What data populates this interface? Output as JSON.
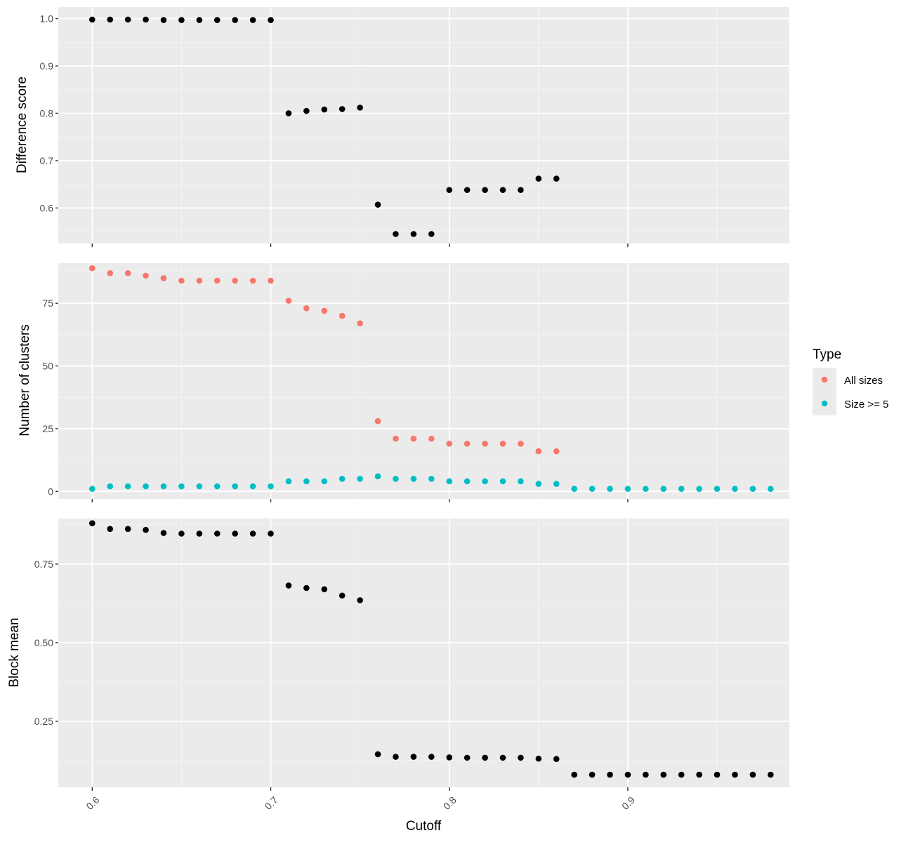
{
  "chart_data": {
    "type": "scatter",
    "xlabel": "Cutoff",
    "x_ticks": [
      "0.6",
      "0.7",
      "0.8",
      "0.9"
    ],
    "x_tick_values": [
      0.6,
      0.7,
      0.8,
      0.9
    ],
    "xlim": [
      0.581,
      0.9905
    ],
    "grid": true,
    "legend": {
      "title": "Type",
      "position": "right",
      "entries": [
        {
          "label": "All sizes",
          "color": "#F8766D"
        },
        {
          "label": "Size >= 5",
          "color": "#00BFC4"
        }
      ]
    },
    "panels": [
      {
        "ylabel": "Difference score",
        "ylim": [
          0.525,
          1.0245
        ],
        "y_ticks": [
          "0.6",
          "0.7",
          "0.8",
          "0.9",
          "1.0"
        ],
        "y_tick_values": [
          0.6,
          0.7,
          0.8,
          0.9,
          1.0
        ],
        "series": [
          {
            "color": "#000000",
            "x": [
              0.6,
              0.61,
              0.62,
              0.63,
              0.64,
              0.65,
              0.66,
              0.67,
              0.68,
              0.69,
              0.7,
              0.71,
              0.72,
              0.73,
              0.74,
              0.75,
              0.76,
              0.77,
              0.78,
              0.79,
              0.8,
              0.81,
              0.82,
              0.83,
              0.84,
              0.85,
              0.86
            ],
            "y": [
              0.998,
              0.998,
              0.998,
              0.998,
              0.997,
              0.997,
              0.997,
              0.997,
              0.997,
              0.997,
              0.997,
              0.8,
              0.805,
              0.808,
              0.809,
              0.812,
              0.607,
              0.545,
              0.545,
              0.545,
              0.638,
              0.638,
              0.638,
              0.638,
              0.638,
              0.662,
              0.662
            ]
          }
        ]
      },
      {
        "ylabel": "Number of clusters",
        "ylim": [
          -3,
          91
        ],
        "y_ticks": [
          "0",
          "25",
          "50",
          "75"
        ],
        "y_tick_values": [
          0,
          25,
          50,
          75
        ],
        "series": [
          {
            "name": "All sizes",
            "color": "#F8766D",
            "x": [
              0.6,
              0.61,
              0.62,
              0.63,
              0.64,
              0.65,
              0.66,
              0.67,
              0.68,
              0.69,
              0.7,
              0.71,
              0.72,
              0.73,
              0.74,
              0.75,
              0.76,
              0.77,
              0.78,
              0.79,
              0.8,
              0.81,
              0.82,
              0.83,
              0.84,
              0.85,
              0.86
            ],
            "y": [
              89,
              87,
              87,
              86,
              85,
              84,
              84,
              84,
              84,
              84,
              84,
              76,
              73,
              72,
              70,
              67,
              28,
              21,
              21,
              21,
              19,
              19,
              19,
              19,
              19,
              16,
              16
            ]
          },
          {
            "name": "Size >= 5",
            "color": "#00BFC4",
            "x": [
              0.6,
              0.61,
              0.62,
              0.63,
              0.64,
              0.65,
              0.66,
              0.67,
              0.68,
              0.69,
              0.7,
              0.71,
              0.72,
              0.73,
              0.74,
              0.75,
              0.76,
              0.77,
              0.78,
              0.79,
              0.8,
              0.81,
              0.82,
              0.83,
              0.84,
              0.85,
              0.86,
              0.87,
              0.88,
              0.89,
              0.9,
              0.91,
              0.92,
              0.93,
              0.94,
              0.95,
              0.96,
              0.97,
              0.98
            ],
            "y": [
              1,
              2,
              2,
              2,
              2,
              2,
              2,
              2,
              2,
              2,
              2,
              4,
              4,
              4,
              5,
              5,
              6,
              5,
              5,
              5,
              4,
              4,
              4,
              4,
              4,
              3,
              3,
              1,
              1,
              1,
              1,
              1,
              1,
              1,
              1,
              1,
              1,
              1,
              1
            ]
          }
        ]
      },
      {
        "ylabel": "Block mean",
        "ylim": [
          0.04,
          0.895
        ],
        "y_ticks": [
          "0.25",
          "0.50",
          "0.75"
        ],
        "y_tick_values": [
          0.25,
          0.5,
          0.75
        ],
        "series": [
          {
            "color": "#000000",
            "x": [
              0.6,
              0.61,
              0.62,
              0.63,
              0.64,
              0.65,
              0.66,
              0.67,
              0.68,
              0.69,
              0.7,
              0.71,
              0.72,
              0.73,
              0.74,
              0.75,
              0.76,
              0.77,
              0.78,
              0.79,
              0.8,
              0.81,
              0.82,
              0.83,
              0.84,
              0.85,
              0.86,
              0.87,
              0.88,
              0.89,
              0.9,
              0.91,
              0.92,
              0.93,
              0.94,
              0.95,
              0.96,
              0.97,
              0.98
            ],
            "y": [
              0.88,
              0.862,
              0.862,
              0.859,
              0.849,
              0.847,
              0.847,
              0.847,
              0.847,
              0.847,
              0.847,
              0.682,
              0.674,
              0.67,
              0.65,
              0.635,
              0.145,
              0.137,
              0.137,
              0.137,
              0.135,
              0.134,
              0.134,
              0.134,
              0.134,
              0.131,
              0.13,
              0.08,
              0.08,
              0.08,
              0.08,
              0.08,
              0.08,
              0.08,
              0.08,
              0.08,
              0.08,
              0.08,
              0.08
            ]
          }
        ]
      }
    ]
  }
}
